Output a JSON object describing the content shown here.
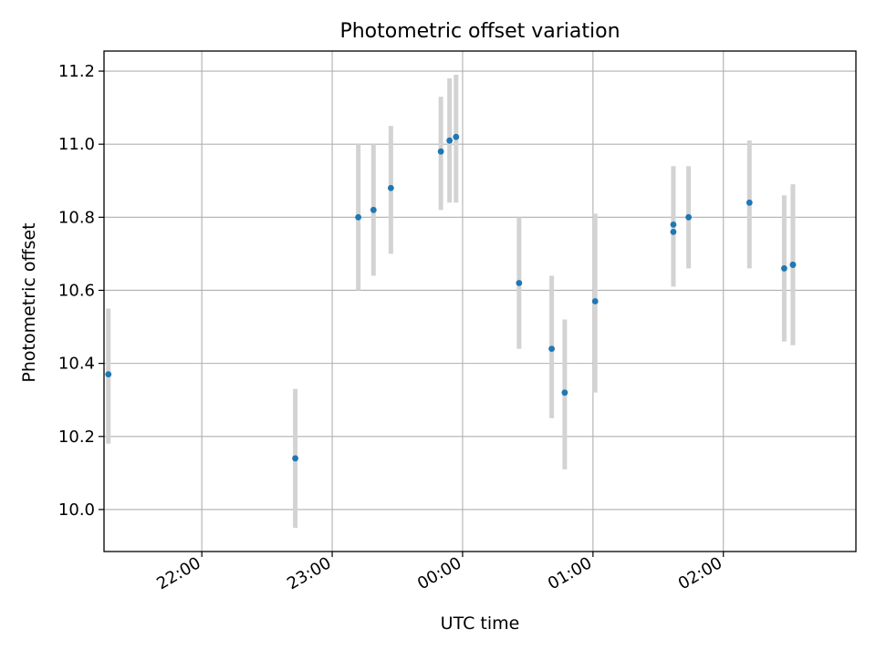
{
  "chart_data": {
    "type": "scatter",
    "title": "Photometric offset variation",
    "xlabel": "UTC time",
    "ylabel": "Photometric offset",
    "x_ticks": [
      "22:00",
      "23:00",
      "00:00",
      "01:00",
      "02:00"
    ],
    "y_ticks": [
      "10.0",
      "10.2",
      "10.4",
      "10.6",
      "10.8",
      "11.0",
      "11.2"
    ],
    "xlim": [
      "21:15",
      "03:01"
    ],
    "ylim": [
      9.885,
      11.255
    ],
    "grid": true,
    "point_color": "#1f77b4",
    "errorbar_color": "#d3d3d3",
    "series": [
      {
        "points": [
          {
            "x": "21:17",
            "y": 10.37,
            "ylow": 10.18,
            "yhigh": 10.55
          },
          {
            "x": "22:43",
            "y": 10.14,
            "ylow": 9.95,
            "yhigh": 10.33
          },
          {
            "x": "23:12",
            "y": 10.8,
            "ylow": 10.6,
            "yhigh": 11.0
          },
          {
            "x": "23:19",
            "y": 10.82,
            "ylow": 10.64,
            "yhigh": 11.0
          },
          {
            "x": "23:27",
            "y": 10.88,
            "ylow": 10.7,
            "yhigh": 11.05
          },
          {
            "x": "23:50",
            "y": 10.98,
            "ylow": 10.82,
            "yhigh": 11.13
          },
          {
            "x": "23:54",
            "y": 11.01,
            "ylow": 10.84,
            "yhigh": 11.18
          },
          {
            "x": "23:57",
            "y": 11.02,
            "ylow": 10.84,
            "yhigh": 11.19
          },
          {
            "x": "00:26",
            "y": 10.62,
            "ylow": 10.44,
            "yhigh": 10.8
          },
          {
            "x": "00:41",
            "y": 10.44,
            "ylow": 10.25,
            "yhigh": 10.64
          },
          {
            "x": "00:47",
            "y": 10.32,
            "ylow": 10.11,
            "yhigh": 10.52
          },
          {
            "x": "01:01",
            "y": 10.57,
            "ylow": 10.32,
            "yhigh": 10.81
          },
          {
            "x": "01:37",
            "y": 10.76,
            "ylow": 10.61,
            "yhigh": 10.93
          },
          {
            "x": "01:37",
            "y": 10.78,
            "ylow": 10.62,
            "yhigh": 10.94
          },
          {
            "x": "01:44",
            "y": 10.8,
            "ylow": 10.66,
            "yhigh": 10.94
          },
          {
            "x": "02:12",
            "y": 10.84,
            "ylow": 10.66,
            "yhigh": 11.01
          },
          {
            "x": "02:28",
            "y": 10.66,
            "ylow": 10.46,
            "yhigh": 10.86
          },
          {
            "x": "02:32",
            "y": 10.67,
            "ylow": 10.45,
            "yhigh": 10.89
          },
          {
            "x": "02:32",
            "y": 10.67,
            "ylow": 10.45,
            "yhigh": 10.89
          }
        ]
      }
    ]
  }
}
